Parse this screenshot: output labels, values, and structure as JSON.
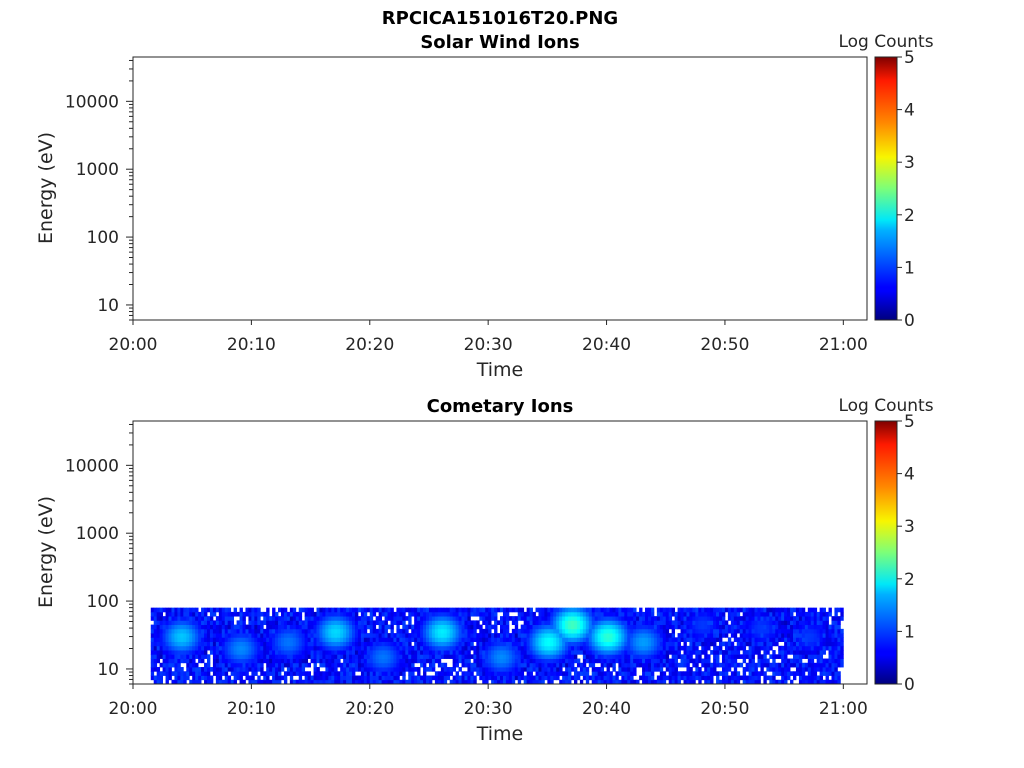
{
  "figure_title": "RPCICA151016T20.PNG",
  "chart_data": [
    {
      "type": "heatmap",
      "title": "Solar Wind Ions",
      "xlabel": "Time",
      "ylabel": "Energy (eV)",
      "x_ticks": [
        "20:00",
        "20:10",
        "20:20",
        "20:30",
        "20:40",
        "20:50",
        "21:00"
      ],
      "xlim": [
        "20:00",
        "21:02"
      ],
      "y_scale": "log",
      "y_ticks": [
        "10",
        "100",
        "1000",
        "10000"
      ],
      "ylim": [
        6,
        45000
      ],
      "colorbar": {
        "label": "Log Counts",
        "ticks": [
          "0",
          "1",
          "2",
          "3",
          "4",
          "5"
        ],
        "range": [
          0,
          5
        ],
        "colormap": "jet"
      },
      "data_present": false
    },
    {
      "type": "heatmap",
      "title": "Cometary Ions",
      "xlabel": "Time",
      "ylabel": "Energy (eV)",
      "x_ticks": [
        "20:00",
        "20:10",
        "20:20",
        "20:30",
        "20:40",
        "20:50",
        "21:00"
      ],
      "xlim": [
        "20:00",
        "21:02"
      ],
      "y_scale": "log",
      "y_ticks": [
        "10",
        "100",
        "1000",
        "10000"
      ],
      "ylim": [
        6,
        45000
      ],
      "colorbar": {
        "label": "Log Counts",
        "ticks": [
          "0",
          "1",
          "2",
          "3",
          "4",
          "5"
        ],
        "range": [
          0,
          5
        ],
        "colormap": "jet"
      },
      "data_present": true,
      "energy_range_eV": [
        6,
        80
      ],
      "time_range": [
        "20:01:30",
        "21:00:00"
      ],
      "features": [
        {
          "time": "20:04",
          "peak_energy_eV": 30,
          "log_counts": 1.6
        },
        {
          "time": "20:09",
          "peak_energy_eV": 20,
          "log_counts": 1.3
        },
        {
          "time": "20:13",
          "peak_energy_eV": 25,
          "log_counts": 1.2
        },
        {
          "time": "20:17",
          "peak_energy_eV": 35,
          "log_counts": 1.7
        },
        {
          "time": "20:21",
          "peak_energy_eV": 15,
          "log_counts": 1.2
        },
        {
          "time": "20:26",
          "peak_energy_eV": 35,
          "log_counts": 1.8
        },
        {
          "time": "20:31",
          "peak_energy_eV": 15,
          "log_counts": 1.3
        },
        {
          "time": "20:35",
          "peak_energy_eV": 25,
          "log_counts": 1.9
        },
        {
          "time": "20:37",
          "peak_energy_eV": 45,
          "log_counts": 2.2
        },
        {
          "time": "20:40",
          "peak_energy_eV": 30,
          "log_counts": 2.1
        },
        {
          "time": "20:43",
          "peak_energy_eV": 25,
          "log_counts": 1.4
        },
        {
          "time": "20:48",
          "peak_energy_eV": 45,
          "log_counts": 0.9
        },
        {
          "time": "20:53",
          "peak_energy_eV": 40,
          "log_counts": 0.9
        },
        {
          "time": "20:57",
          "peak_energy_eV": 30,
          "log_counts": 0.9
        }
      ]
    }
  ]
}
